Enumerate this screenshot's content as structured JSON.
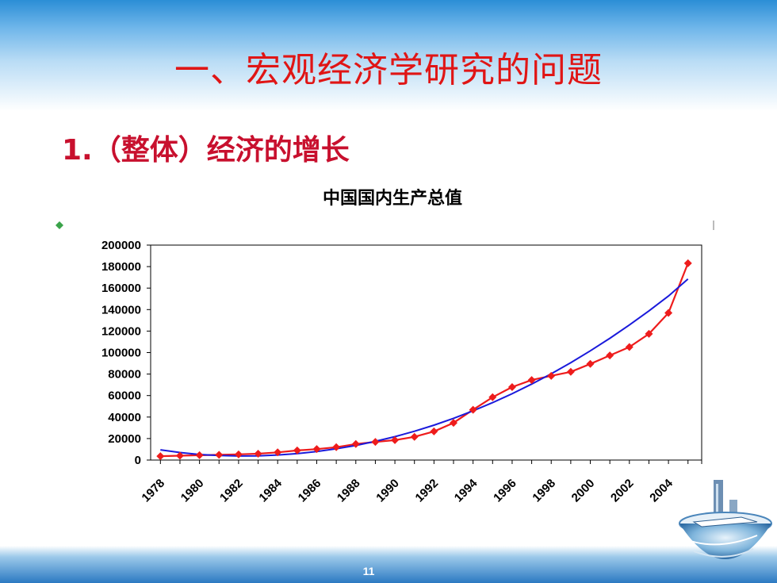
{
  "slide": {
    "title": "一、宏观经济学研究的问题",
    "subtitle": "1.（整体）经济的增长",
    "page_number": "11"
  },
  "colors": {
    "title": "#e01515",
    "subtitle": "#c8102e",
    "actual_series": "#ee1c1c",
    "trend_line": "#1a1adb",
    "header_band": "#2b8ed6"
  },
  "icons": {
    "logo": "globe-ship-logo-icon"
  },
  "chart_data": {
    "type": "line",
    "title": "中国国内生产总值",
    "xlabel": "",
    "ylabel": "",
    "ylim": [
      0,
      200000
    ],
    "yticks": [
      "0",
      "20000",
      "40000",
      "60000",
      "80000",
      "100000",
      "120000",
      "140000",
      "160000",
      "180000",
      "200000"
    ],
    "xticks": [
      "1978",
      "1980",
      "1982",
      "1984",
      "1986",
      "1988",
      "1990",
      "1992",
      "1994",
      "1996",
      "1998",
      "2000",
      "2002",
      "2004"
    ],
    "x": [
      1978,
      1979,
      1980,
      1981,
      1982,
      1983,
      1984,
      1985,
      1986,
      1987,
      1988,
      1989,
      1990,
      1991,
      1992,
      1993,
      1994,
      1995,
      1996,
      1997,
      1998,
      1999,
      2000,
      2001,
      2002,
      2003,
      2004,
      2005
    ],
    "grid": true,
    "legend": "none",
    "series": [
      {
        "values": [
          3624,
          4038,
          4518,
          4862,
          5295,
          5935,
          7171,
          8964,
          10202,
          11963,
          14928,
          16909,
          18548,
          21618,
          26638,
          34634,
          46759,
          58478,
          67885,
          74463,
          78345,
          82068,
          89442,
          97315,
          105172,
          117390,
          136876,
          183085
        ]
      },
      {
        "values": [
          9500,
          7000,
          5200,
          4200,
          3800,
          3900,
          4700,
          6000,
          7900,
          10500,
          13600,
          17400,
          21800,
          26800,
          32500,
          38800,
          45800,
          53400,
          61700,
          70700,
          80300,
          90600,
          101600,
          113300,
          125700,
          138800,
          152600,
          168500
        ]
      }
    ]
  }
}
